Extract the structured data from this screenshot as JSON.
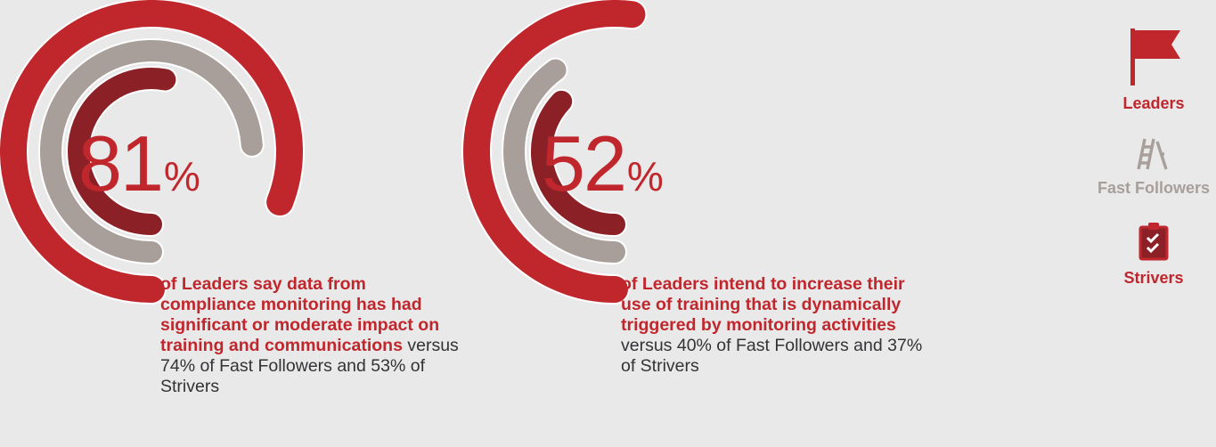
{
  "colors": {
    "background": "#e9e9ea",
    "leaders": "#c0272d",
    "fast_followers": "#a89e9a",
    "strivers": "#8b2126",
    "text": "#333335"
  },
  "chart_data": [
    {
      "type": "radial_bar",
      "value": "81",
      "unit": "%",
      "series": [
        {
          "name": "Leaders",
          "value": 81
        },
        {
          "name": "Fast Followers",
          "value": 74
        },
        {
          "name": "Strivers",
          "value": 53
        }
      ],
      "description": {
        "highlight": "of Leaders say data from compliance monitoring has had significant or moderate impact on training and communications",
        "rest": " versus 74% of Fast Followers and 53% of Strivers"
      }
    },
    {
      "type": "radial_bar",
      "value": "52",
      "unit": "%",
      "series": [
        {
          "name": "Leaders",
          "value": 52
        },
        {
          "name": "Fast Followers",
          "value": 40
        },
        {
          "name": "Strivers",
          "value": 37
        }
      ],
      "description": {
        "highlight": "of Leaders intend to increase their use of training that is dynamically triggered by monitoring activities",
        "rest": " versus 40% of Fast Followers and 37% of Strivers"
      }
    }
  ],
  "legend": [
    {
      "label": "Leaders",
      "icon": "flag-icon",
      "color": "#c0272d"
    },
    {
      "label": "Fast Followers",
      "icon": "ladder-icon",
      "color": "#a89e9a"
    },
    {
      "label": "Strivers",
      "icon": "clipboard-icon",
      "color": "#c0272d"
    }
  ]
}
